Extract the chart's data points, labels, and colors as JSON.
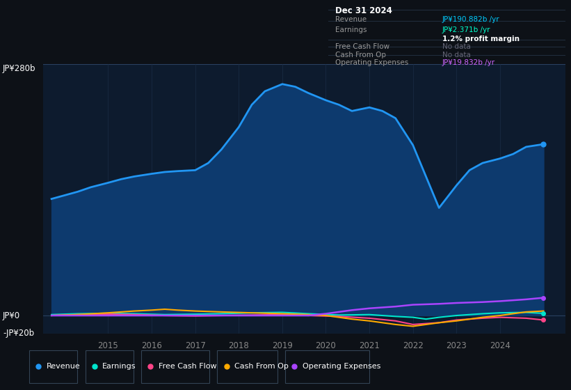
{
  "background_color": "#0d1117",
  "chart_bg": "#0d1b2e",
  "title_box": {
    "date": "Dec 31 2024",
    "revenue_label": "Revenue",
    "revenue_value": "JP¥190.882b /yr",
    "revenue_color": "#00ccff",
    "earnings_label": "Earnings",
    "earnings_value": "JP¥2.371b /yr",
    "earnings_color": "#00ffcc",
    "margin_text": "1.2% profit margin",
    "fcf_label": "Free Cash Flow",
    "fcf_value": "No data",
    "cfo_label": "Cash From Op",
    "cfo_value": "No data",
    "opex_label": "Operating Expenses",
    "opex_value": "JP¥19.832b /yr",
    "opex_color": "#cc66ff"
  },
  "ylim": [
    -20,
    280
  ],
  "xlim": [
    2013.5,
    2025.5
  ],
  "ytick_labels": [
    "JP¥0",
    "JP¥280b"
  ],
  "ytick_neg_label": "-JP¥20b",
  "xticks": [
    2015,
    2016,
    2017,
    2018,
    2019,
    2020,
    2021,
    2022,
    2023,
    2024
  ],
  "grid_color": "#1e3050",
  "revenue": {
    "x": [
      2013.7,
      2014.0,
      2014.3,
      2014.6,
      2015.0,
      2015.3,
      2015.6,
      2016.0,
      2016.3,
      2016.6,
      2017.0,
      2017.3,
      2017.6,
      2018.0,
      2018.3,
      2018.6,
      2019.0,
      2019.3,
      2019.6,
      2020.0,
      2020.3,
      2020.6,
      2021.0,
      2021.3,
      2021.6,
      2022.0,
      2022.3,
      2022.6,
      2023.0,
      2023.3,
      2023.6,
      2024.0,
      2024.3,
      2024.6,
      2025.0
    ],
    "y": [
      130,
      134,
      138,
      143,
      148,
      152,
      155,
      158,
      160,
      161,
      162,
      170,
      185,
      210,
      235,
      250,
      258,
      255,
      248,
      240,
      235,
      228,
      232,
      228,
      220,
      190,
      155,
      120,
      145,
      162,
      170,
      175,
      180,
      188,
      191
    ],
    "color": "#2196f3",
    "fill_color": "#0d3a6e",
    "linewidth": 2.0
  },
  "earnings": {
    "x": [
      2013.7,
      2014.3,
      2015.0,
      2015.6,
      2016.3,
      2017.0,
      2017.6,
      2018.3,
      2019.0,
      2019.6,
      2020.3,
      2021.0,
      2021.6,
      2022.0,
      2022.3,
      2022.6,
      2023.0,
      2023.6,
      2024.0,
      2024.6,
      2025.0
    ],
    "y": [
      1,
      2,
      2.5,
      2,
      1,
      1.5,
      2,
      3,
      3.5,
      2,
      0.5,
      1,
      -1,
      -2,
      -4,
      -2,
      0,
      2,
      3,
      3.5,
      2.4
    ],
    "color": "#00e5cc",
    "linewidth": 1.5
  },
  "fcf": {
    "x": [
      2013.7,
      2014.3,
      2015.0,
      2015.6,
      2016.3,
      2017.0,
      2017.6,
      2018.3,
      2019.0,
      2019.6,
      2020.3,
      2021.0,
      2021.6,
      2022.0,
      2022.6,
      2023.0,
      2023.6,
      2024.0,
      2024.6,
      2025.0
    ],
    "y": [
      0,
      1,
      1.5,
      1,
      0,
      -0.5,
      0,
      0.5,
      1,
      0,
      -1,
      -3,
      -6,
      -10,
      -8,
      -5,
      -3,
      -2,
      -3,
      -5
    ],
    "color": "#ff4488",
    "linewidth": 1.5
  },
  "cash_from_op": {
    "x": [
      2013.7,
      2014.3,
      2015.0,
      2015.6,
      2016.0,
      2016.3,
      2016.6,
      2017.0,
      2017.6,
      2018.3,
      2019.0,
      2019.6,
      2020.0,
      2020.3,
      2020.6,
      2021.0,
      2021.3,
      2021.6,
      2022.0,
      2022.3,
      2022.6,
      2023.0,
      2023.3,
      2023.6,
      2024.0,
      2024.3,
      2024.6,
      2025.0
    ],
    "y": [
      0,
      1,
      3,
      5,
      6,
      7,
      6,
      5,
      4,
      3,
      2,
      1,
      0,
      -2,
      -4,
      -6,
      -8,
      -10,
      -12,
      -10,
      -8,
      -6,
      -4,
      -2,
      0,
      2,
      4,
      5
    ],
    "color": "#ffaa00",
    "linewidth": 1.5
  },
  "opex": {
    "x": [
      2013.7,
      2014.3,
      2015.0,
      2016.0,
      2017.0,
      2018.0,
      2019.0,
      2019.6,
      2020.0,
      2020.3,
      2020.6,
      2021.0,
      2021.6,
      2022.0,
      2022.6,
      2023.0,
      2023.6,
      2024.0,
      2024.6,
      2025.0
    ],
    "y": [
      0,
      0,
      0,
      0,
      0,
      0,
      0,
      0,
      2,
      4,
      6,
      8,
      10,
      12,
      13,
      14,
      15,
      16,
      18,
      19.8
    ],
    "color": "#aa44ff",
    "linewidth": 1.8
  },
  "legend": [
    {
      "label": "Revenue",
      "color": "#2196f3"
    },
    {
      "label": "Earnings",
      "color": "#00e5cc"
    },
    {
      "label": "Free Cash Flow",
      "color": "#ff4488"
    },
    {
      "label": "Cash From Op",
      "color": "#ffaa00"
    },
    {
      "label": "Operating Expenses",
      "color": "#aa44ff"
    }
  ]
}
